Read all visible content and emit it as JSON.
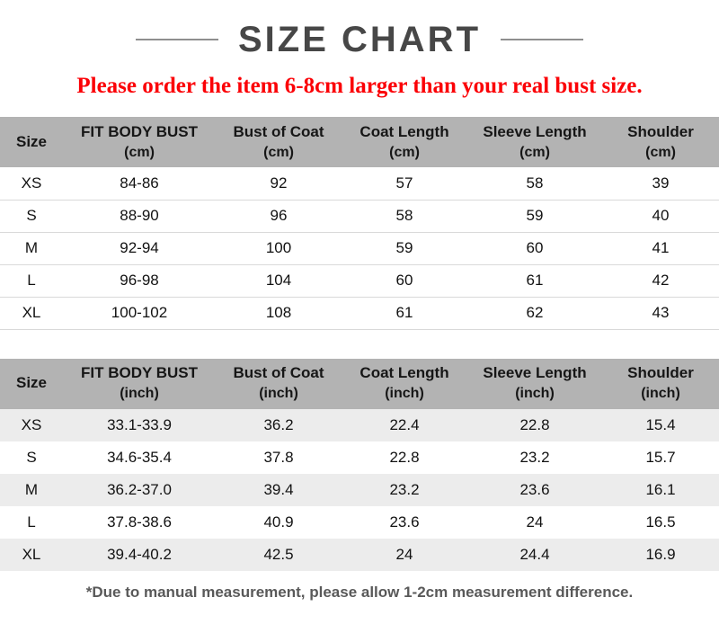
{
  "page": {
    "title": "SIZE CHART",
    "notice": "Please order the item 6-8cm larger than your real bust size.",
    "footnote": "*Due to manual measurement, please allow 1-2cm measurement difference."
  },
  "colors": {
    "title": "#474747",
    "notice_red": "#fb0006",
    "header_bg": "#b3b3b3",
    "zebra_row": "#ececec",
    "footnote_gray": "#595959"
  },
  "tables": {
    "cm": {
      "headers": [
        {
          "l1": "Size",
          "l2": ""
        },
        {
          "l1": "FIT BODY BUST",
          "l2": "(cm)"
        },
        {
          "l1": "Bust of Coat",
          "l2": "(cm)"
        },
        {
          "l1": "Coat Length",
          "l2": "(cm)"
        },
        {
          "l1": "Sleeve Length",
          "l2": "(cm)"
        },
        {
          "l1": "Shoulder",
          "l2": "(cm)"
        }
      ],
      "rows": [
        [
          "XS",
          "84-86",
          "92",
          "57",
          "58",
          "39"
        ],
        [
          "S",
          "88-90",
          "96",
          "58",
          "59",
          "40"
        ],
        [
          "M",
          "92-94",
          "100",
          "59",
          "60",
          "41"
        ],
        [
          "L",
          "96-98",
          "104",
          "60",
          "61",
          "42"
        ],
        [
          "XL",
          "100-102",
          "108",
          "61",
          "62",
          "43"
        ]
      ]
    },
    "inch": {
      "headers": [
        {
          "l1": "Size",
          "l2": ""
        },
        {
          "l1": "FIT BODY BUST",
          "l2": "(inch)"
        },
        {
          "l1": "Bust of Coat",
          "l2": "(inch)"
        },
        {
          "l1": "Coat Length",
          "l2": "(inch)"
        },
        {
          "l1": "Sleeve Length",
          "l2": "(inch)"
        },
        {
          "l1": "Shoulder",
          "l2": "(inch)"
        }
      ],
      "rows": [
        [
          "XS",
          "33.1-33.9",
          "36.2",
          "22.4",
          "22.8",
          "15.4"
        ],
        [
          "S",
          "34.6-35.4",
          "37.8",
          "22.8",
          "23.2",
          "15.7"
        ],
        [
          "M",
          "36.2-37.0",
          "39.4",
          "23.2",
          "23.6",
          "16.1"
        ],
        [
          "L",
          "37.8-38.6",
          "40.9",
          "23.6",
          "24",
          "16.5"
        ],
        [
          "XL",
          "39.4-40.2",
          "42.5",
          "24",
          "24.4",
          "16.9"
        ]
      ]
    }
  }
}
